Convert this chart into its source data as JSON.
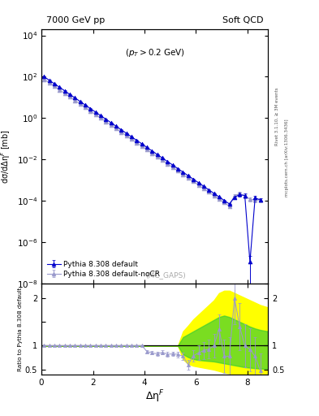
{
  "title_left": "7000 GeV pp",
  "title_right": "Soft QCD",
  "annotation": "(p_{T} > 0.2 GeV)",
  "watermark": "(MC_GAPS)",
  "ylabel_main": "dσ/dΔη$^F$ [mb]",
  "ylabel_ratio": "Ratio to Pythia 8.308 default",
  "xlabel": "Δη$^F$",
  "right_label": "Rivet 3.1.10, ≥ 3M events",
  "right_label2": "mcplots.cern.ch [arXiv:1306.3436]",
  "legend": [
    "Pythia 8.308 default",
    "Pythia 8.308 default-noCR"
  ],
  "main_xlim": [
    0,
    8.8
  ],
  "main_ylim": [
    1e-08,
    20000.0
  ],
  "ratio_xlim": [
    0,
    8.8
  ],
  "ratio_ylim": [
    0.4,
    2.3
  ],
  "color_default": "#0000CC",
  "color_noCR": "#9999CC",
  "color_yellow": "#FFFF00",
  "color_green": "#33CC33",
  "x_default": [
    0.1,
    0.3,
    0.5,
    0.7,
    0.9,
    1.1,
    1.3,
    1.5,
    1.7,
    1.9,
    2.1,
    2.3,
    2.5,
    2.7,
    2.9,
    3.1,
    3.3,
    3.5,
    3.7,
    3.9,
    4.1,
    4.3,
    4.5,
    4.7,
    4.9,
    5.1,
    5.3,
    5.5,
    5.7,
    5.9,
    6.1,
    6.3,
    6.5,
    6.7,
    6.9,
    7.1,
    7.3,
    7.5,
    7.7,
    7.9,
    8.1,
    8.3,
    8.5
  ],
  "y_default": [
    100.0,
    68.0,
    46.0,
    31.0,
    21.0,
    14.0,
    9.5,
    6.4,
    4.3,
    2.9,
    1.95,
    1.32,
    0.89,
    0.6,
    0.405,
    0.273,
    0.184,
    0.124,
    0.084,
    0.057,
    0.038,
    0.0257,
    0.0173,
    0.0117,
    0.0079,
    0.00535,
    0.0036,
    0.00243,
    0.00164,
    0.00111,
    0.00075,
    0.00051,
    0.00034,
    0.00023,
    0.000155,
    0.000105,
    7.1e-05,
    0.00015,
    0.0002,
    0.00018,
    1.1e-07,
    0.00014,
    0.00011
  ],
  "yerr_default": [
    2.0,
    1.4,
    0.9,
    0.6,
    0.4,
    0.28,
    0.19,
    0.13,
    0.086,
    0.058,
    0.039,
    0.0264,
    0.0178,
    0.012,
    0.0081,
    0.0055,
    0.0037,
    0.0025,
    0.0017,
    0.0011,
    0.00076,
    0.00051,
    0.00035,
    0.00023,
    0.00016,
    0.00011,
    7.2e-05,
    4.9e-05,
    3.3e-05,
    2.2e-05,
    1.5e-05,
    1e-05,
    6.8e-06,
    4.6e-06,
    3.1e-06,
    2.1e-06,
    1.4e-06,
    3e-05,
    4e-05,
    4e-05,
    1e-07,
    3e-05,
    2e-05
  ],
  "x_noCR": [
    0.1,
    0.3,
    0.5,
    0.7,
    0.9,
    1.1,
    1.3,
    1.5,
    1.7,
    1.9,
    2.1,
    2.3,
    2.5,
    2.7,
    2.9,
    3.1,
    3.3,
    3.5,
    3.7,
    3.9,
    4.1,
    4.3,
    4.5,
    4.7,
    4.9,
    5.1,
    5.3,
    5.5,
    5.7,
    5.9,
    6.1,
    6.3,
    6.5,
    6.7,
    6.9,
    7.1,
    7.3,
    7.5,
    7.7,
    7.9,
    8.1,
    8.3,
    8.5
  ],
  "y_noCR": [
    75.0,
    51.0,
    34.5,
    23.3,
    15.7,
    10.6,
    7.15,
    4.82,
    3.25,
    2.19,
    1.48,
    1.0,
    0.675,
    0.456,
    0.308,
    0.208,
    0.141,
    0.0951,
    0.0643,
    0.0434,
    0.0293,
    0.0198,
    0.0134,
    0.00905,
    0.00611,
    0.00413,
    0.00279,
    0.00188,
    0.00127,
    0.000858,
    0.000579,
    0.000391,
    0.000264,
    0.000178,
    0.00012,
    8.12e-05,
    5.48e-05,
    0.00018,
    0.00022,
    0.00017,
    0.00012,
    0.00011,
    0.00011
  ],
  "yerr_noCR": [
    1.5,
    1.0,
    0.7,
    0.47,
    0.31,
    0.21,
    0.14,
    0.097,
    0.065,
    0.044,
    0.03,
    0.02,
    0.0135,
    0.0091,
    0.0062,
    0.0042,
    0.0028,
    0.0019,
    0.0013,
    0.00087,
    0.00059,
    0.0004,
    0.00027,
    0.00018,
    0.00012,
    8.3e-05,
    5.6e-05,
    3.8e-05,
    2.5e-05,
    1.7e-05,
    1.2e-05,
    7.8e-06,
    5.3e-06,
    3.6e-06,
    2.4e-06,
    1.6e-06,
    1.1e-06,
    3.6e-05,
    4.4e-05,
    3.4e-05,
    2.4e-05,
    2.2e-05,
    2.2e-05
  ],
  "ratio_x": [
    0.1,
    0.3,
    0.5,
    0.7,
    0.9,
    1.1,
    1.3,
    1.5,
    1.7,
    1.9,
    2.1,
    2.3,
    2.5,
    2.7,
    2.9,
    3.1,
    3.3,
    3.5,
    3.7,
    3.9,
    4.1,
    4.3,
    4.5,
    4.7,
    4.9,
    5.1,
    5.3,
    5.5,
    5.7,
    5.9,
    6.1,
    6.3,
    6.5,
    6.7,
    6.9,
    7.1,
    7.3,
    7.5,
    7.7,
    7.9,
    8.1,
    8.3,
    8.5
  ],
  "ratio_y": [
    1.0,
    1.0,
    1.0,
    1.0,
    1.0,
    1.0,
    1.0,
    1.0,
    1.0,
    1.0,
    1.0,
    1.0,
    1.0,
    1.0,
    1.0,
    1.0,
    1.0,
    1.0,
    1.0,
    1.0,
    0.88,
    0.85,
    0.83,
    0.86,
    0.82,
    0.83,
    0.82,
    0.78,
    0.6,
    0.79,
    0.85,
    0.9,
    0.93,
    1.0,
    1.35,
    0.78,
    0.78,
    2.0,
    1.4,
    1.0,
    0.92,
    0.78,
    0.48
  ],
  "ratio_yerr": [
    0.005,
    0.005,
    0.005,
    0.005,
    0.005,
    0.005,
    0.005,
    0.005,
    0.005,
    0.005,
    0.005,
    0.005,
    0.005,
    0.005,
    0.005,
    0.005,
    0.005,
    0.005,
    0.005,
    0.01,
    0.03,
    0.035,
    0.04,
    0.04,
    0.05,
    0.05,
    0.06,
    0.07,
    0.1,
    0.12,
    0.15,
    0.18,
    0.2,
    0.25,
    0.3,
    0.35,
    0.4,
    0.55,
    0.5,
    0.45,
    0.45,
    0.4,
    0.35
  ],
  "yellow_band_x": [
    0.0,
    5.3,
    5.5,
    5.7,
    5.9,
    6.1,
    6.3,
    6.5,
    6.7,
    6.9,
    7.1,
    7.3,
    7.5,
    7.7,
    7.9,
    8.1,
    8.3,
    8.5,
    8.8
  ],
  "yellow_band_lo": [
    1.0,
    1.0,
    0.72,
    0.62,
    0.58,
    0.56,
    0.54,
    0.52,
    0.5,
    0.47,
    0.44,
    0.42,
    0.4,
    0.4,
    0.39,
    0.39,
    0.39,
    0.39,
    0.39
  ],
  "yellow_band_hi": [
    1.0,
    1.0,
    1.3,
    1.42,
    1.55,
    1.65,
    1.75,
    1.85,
    1.95,
    2.1,
    2.15,
    2.15,
    2.1,
    2.05,
    2.0,
    1.95,
    1.9,
    1.85,
    1.8
  ],
  "green_band_x": [
    0.0,
    5.3,
    5.5,
    5.7,
    5.9,
    6.1,
    6.3,
    6.5,
    6.7,
    6.9,
    7.1,
    7.3,
    7.5,
    7.7,
    7.9,
    8.1,
    8.3,
    8.5,
    8.8
  ],
  "green_band_lo": [
    1.0,
    1.0,
    0.82,
    0.76,
    0.72,
    0.7,
    0.69,
    0.68,
    0.67,
    0.65,
    0.63,
    0.61,
    0.59,
    0.57,
    0.55,
    0.54,
    0.53,
    0.52,
    0.52
  ],
  "green_band_hi": [
    1.0,
    1.0,
    1.18,
    1.24,
    1.3,
    1.36,
    1.42,
    1.48,
    1.54,
    1.6,
    1.63,
    1.6,
    1.55,
    1.5,
    1.45,
    1.4,
    1.36,
    1.33,
    1.3
  ]
}
